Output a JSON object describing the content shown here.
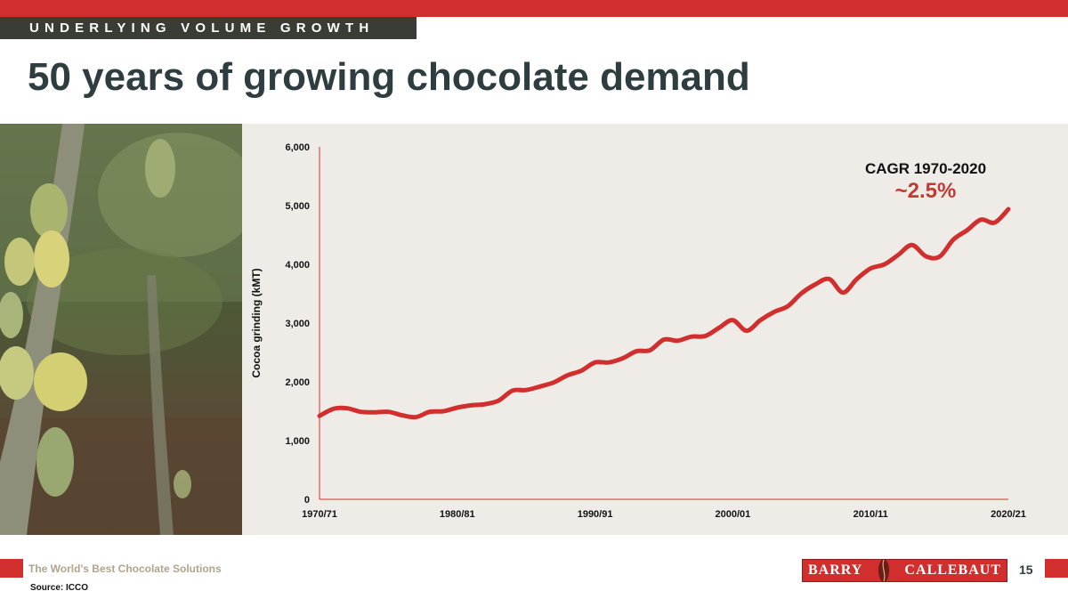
{
  "header": {
    "section_label": "UNDERLYING VOLUME GROWTH",
    "title": "50 years of growing chocolate demand"
  },
  "footer": {
    "tagline": "The World's Best Chocolate Solutions",
    "source": "Source: ICCO",
    "logo_left": "BARRY",
    "logo_right": "CALLEBAUT",
    "page_number": "15"
  },
  "colors": {
    "accent_red": "#d12f2e",
    "title_dark": "#2e3d40",
    "panel_bg": "#efece7",
    "tab_dark": "#3a3d36"
  },
  "photo": {
    "icon": "cocoa-pod-photo"
  },
  "chart_data": {
    "type": "line",
    "ylabel": "Cocoa grinding (kMT)",
    "ylim": [
      0,
      6000
    ],
    "yticks": [
      0,
      1000,
      2000,
      3000,
      4000,
      5000,
      6000
    ],
    "ytick_labels": [
      "0",
      "1,000",
      "2,000",
      "3,000",
      "4,000",
      "5,000",
      "6,000"
    ],
    "xlim": [
      1970,
      2020
    ],
    "xticks": [
      1970,
      1980,
      1990,
      2000,
      2010,
      2020
    ],
    "xtick_labels": [
      "1970/71",
      "1980/81",
      "1990/91",
      "2000/01",
      "2010/11",
      "2020/21"
    ],
    "annotation": {
      "label": "CAGR 1970-2020",
      "value": "~2.5%"
    },
    "series": [
      {
        "color": "#d12f2e",
        "x": [
          1970,
          1971,
          1972,
          1973,
          1974,
          1975,
          1976,
          1977,
          1978,
          1979,
          1980,
          1981,
          1982,
          1983,
          1984,
          1985,
          1986,
          1987,
          1988,
          1989,
          1990,
          1991,
          1992,
          1993,
          1994,
          1995,
          1996,
          1997,
          1998,
          1999,
          2000,
          2001,
          2002,
          2003,
          2004,
          2005,
          2006,
          2007,
          2008,
          2009,
          2010,
          2011,
          2012,
          2013,
          2014,
          2015,
          2016,
          2017,
          2018,
          2019,
          2020
        ],
        "values": [
          1420,
          1540,
          1550,
          1490,
          1480,
          1490,
          1430,
          1400,
          1490,
          1500,
          1560,
          1600,
          1620,
          1680,
          1850,
          1860,
          1920,
          1990,
          2110,
          2190,
          2330,
          2330,
          2400,
          2520,
          2540,
          2720,
          2700,
          2770,
          2780,
          2920,
          3050,
          2870,
          3050,
          3190,
          3290,
          3510,
          3660,
          3750,
          3520,
          3750,
          3930,
          4000,
          4160,
          4330,
          4140,
          4130,
          4420,
          4580,
          4760,
          4710,
          4940
        ]
      }
    ]
  }
}
